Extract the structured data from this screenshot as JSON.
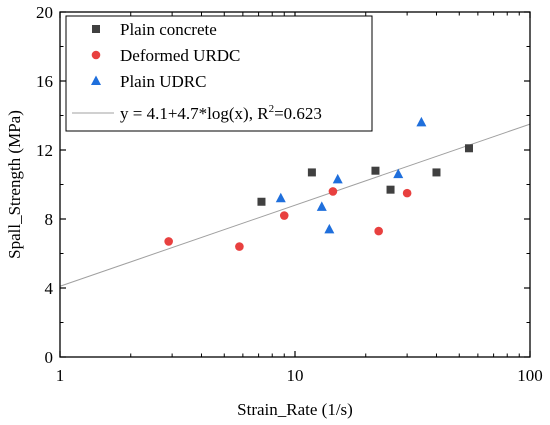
{
  "chart_data": {
    "type": "scatter",
    "xlabel": "Strain_Rate (1/s)",
    "ylabel": "Spall_Strength (MPa)",
    "xscale": "log",
    "xlim": [
      1,
      100
    ],
    "ylim": [
      0,
      20
    ],
    "xticks": [
      1,
      10,
      100
    ],
    "xtick_labels": [
      "1",
      "10",
      "100"
    ],
    "yticks": [
      0,
      4,
      8,
      12,
      16,
      20
    ],
    "ytick_labels": [
      "0",
      "4",
      "8",
      "12",
      "16",
      "20"
    ],
    "grid": false,
    "legend_position": "top-left",
    "series": [
      {
        "name": "Plain concrete",
        "marker": "square",
        "color": "#404040",
        "x": [
          7.2,
          11.8,
          22.0,
          25.5,
          40.0,
          55.0
        ],
        "y": [
          9.0,
          10.7,
          10.8,
          9.7,
          10.7,
          12.1
        ]
      },
      {
        "name": "Deformed URDC",
        "marker": "circle",
        "color": "#e8403f",
        "x": [
          2.9,
          5.8,
          9.0,
          14.5,
          22.7,
          30.0
        ],
        "y": [
          6.7,
          6.4,
          8.2,
          9.6,
          7.3,
          9.5
        ]
      },
      {
        "name": "Plain UDRC",
        "marker": "triangle",
        "color": "#1f6fdc",
        "x": [
          8.7,
          13.0,
          14.0,
          15.2,
          27.5,
          34.5
        ],
        "y": [
          9.2,
          8.7,
          7.4,
          10.3,
          10.6,
          13.6
        ]
      }
    ],
    "fit": {
      "label_main": "y = 4.1+4.7*log(x), R",
      "label_sup": "2",
      "label_tail": "=0.623",
      "intercept": 4.1,
      "slope": 4.7,
      "color": "#a0a0a0"
    }
  }
}
